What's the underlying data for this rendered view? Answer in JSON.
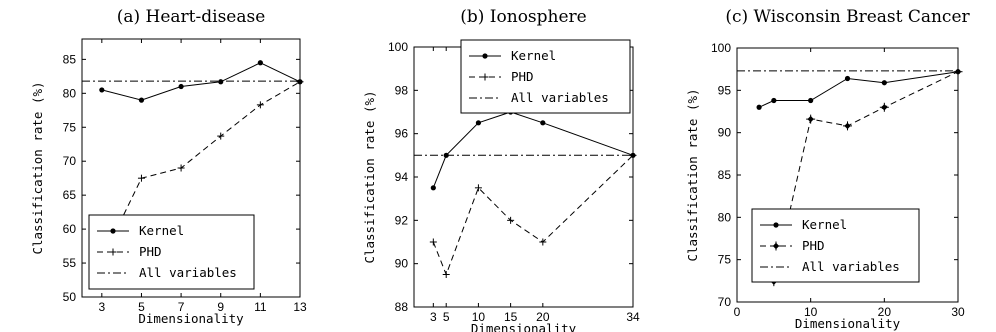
{
  "chart_data": [
    {
      "type": "line",
      "title": "(a) Heart-disease",
      "xlabel": "Dimensionality",
      "ylabel": "Classification rate (%)",
      "xlim": [
        2,
        13
      ],
      "ylim": [
        50,
        88
      ],
      "xticks": [
        3,
        5,
        7,
        9,
        11,
        13
      ],
      "yticks": [
        50,
        55,
        60,
        65,
        70,
        75,
        80,
        85
      ],
      "legend_position": "bottom-right",
      "series": [
        {
          "name": "Kernel",
          "style": "solid",
          "marker": "dot",
          "x": [
            3,
            5,
            7,
            9,
            11,
            13
          ],
          "y": [
            80.5,
            79,
            81,
            81.7,
            84.5,
            81.7
          ]
        },
        {
          "name": "PHD",
          "style": "dashed",
          "marker": "plus",
          "x": [
            3,
            5,
            7,
            9,
            11,
            13
          ],
          "y": [
            55.5,
            67.5,
            69,
            73.7,
            78.3,
            81.7
          ]
        },
        {
          "name": "All variables",
          "style": "dashdot",
          "marker": "none",
          "x": [
            2,
            13
          ],
          "y": [
            81.8,
            81.8
          ]
        }
      ]
    },
    {
      "type": "line",
      "title": "(b) Ionosphere",
      "xlabel": "Dimensionality",
      "ylabel": "Classification rate (%)",
      "xlim": [
        0,
        34
      ],
      "ylim": [
        88,
        100
      ],
      "xticks": [
        3,
        5,
        10,
        15,
        20,
        34
      ],
      "yticks": [
        88,
        90,
        92,
        94,
        96,
        98,
        100
      ],
      "legend_position": "top-right",
      "series": [
        {
          "name": "Kernel",
          "style": "solid",
          "marker": "dot",
          "x": [
            3,
            5,
            10,
            15,
            20,
            34
          ],
          "y": [
            93.5,
            95,
            96.5,
            97,
            96.5,
            95
          ]
        },
        {
          "name": "PHD",
          "style": "dashed",
          "marker": "plus",
          "x": [
            3,
            5,
            10,
            15,
            20,
            34
          ],
          "y": [
            91,
            89.5,
            93.5,
            92,
            91,
            95
          ]
        },
        {
          "name": "All variables",
          "style": "dashdot",
          "marker": "none",
          "x": [
            0,
            34
          ],
          "y": [
            95,
            95
          ]
        }
      ]
    },
    {
      "type": "line",
      "title": "(c) Wisconsin Breast Cancer",
      "xlabel": "Dimensionality",
      "ylabel": "Classification rate (%)",
      "xlim": [
        0,
        30
      ],
      "ylim": [
        70,
        100
      ],
      "xticks": [
        0,
        10,
        20,
        30
      ],
      "yticks": [
        70,
        75,
        80,
        85,
        90,
        95,
        100
      ],
      "legend_position": "right",
      "series": [
        {
          "name": "Kernel",
          "style": "solid",
          "marker": "dot",
          "x": [
            3,
            5,
            10,
            15,
            20,
            30
          ],
          "y": [
            93,
            93.8,
            93.8,
            96.4,
            95.9,
            97.2
          ]
        },
        {
          "name": "PHD",
          "style": "dashed",
          "marker": "diamond-plus",
          "x": [
            3,
            5,
            10,
            15,
            20,
            30
          ],
          "y": [
            73.5,
            72.4,
            91.6,
            90.8,
            93,
            97.2
          ]
        },
        {
          "name": "All variables",
          "style": "dashdot",
          "marker": "none",
          "x": [
            0,
            30
          ],
          "y": [
            97.3,
            97.3
          ]
        }
      ]
    }
  ]
}
